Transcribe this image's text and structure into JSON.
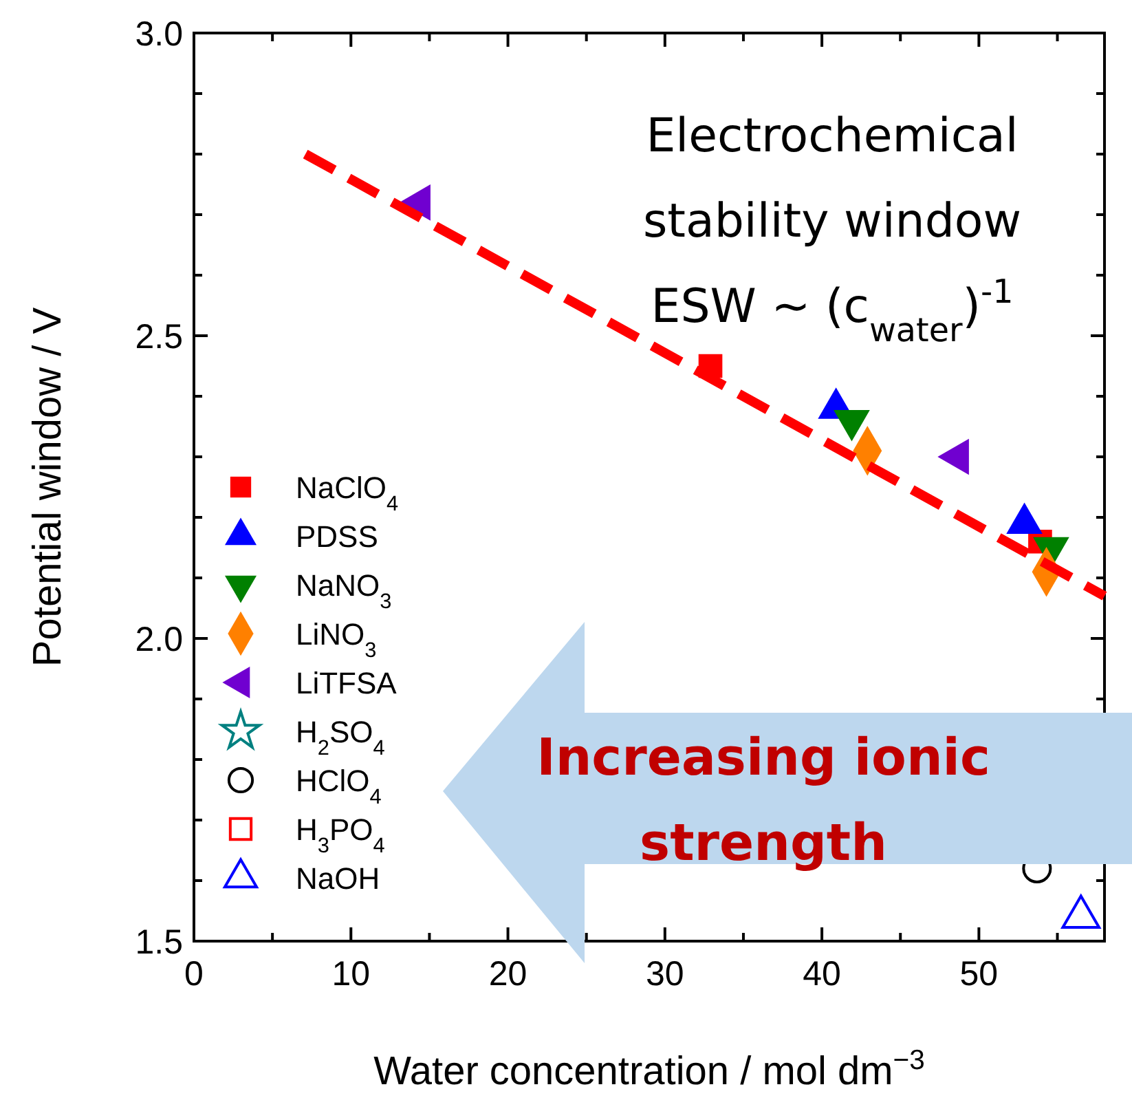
{
  "chart_data": {
    "type": "scatter",
    "xlabel": "Water concentration / mol dm$^{−3}$",
    "ylabel": "Potential window / V",
    "xlim": [
      0,
      58
    ],
    "ylim": [
      1.5,
      3.0
    ],
    "xticks": [
      0,
      10,
      20,
      30,
      40,
      50,
      {
        "value": 5,
        "label": null
      },
      {
        "value": 15,
        "label": null
      },
      {
        "value": 25,
        "label": null
      },
      {
        "value": 35,
        "label": null
      },
      {
        "value": 45,
        "label": null
      },
      {
        "value": 55,
        "label": null
      }
    ],
    "yticks": [
      {
        "value": 1.5,
        "label": "1.5"
      },
      {
        "value": 2.0,
        "label": "2.0"
      },
      {
        "value": 2.5,
        "label": "2.5"
      },
      {
        "value": 3.0,
        "label": "3.0"
      },
      {
        "value": 1.6,
        "label": null
      },
      {
        "value": 1.7,
        "label": null
      },
      {
        "value": 1.8,
        "label": null
      },
      {
        "value": 1.9,
        "label": null
      },
      {
        "value": 2.1,
        "label": null
      },
      {
        "value": 2.2,
        "label": null
      },
      {
        "value": 2.3,
        "label": null
      },
      {
        "value": 2.4,
        "label": null
      },
      {
        "value": 2.6,
        "label": null
      },
      {
        "value": 2.7,
        "label": null
      },
      {
        "value": 2.8,
        "label": null
      },
      {
        "value": 2.9,
        "label": null
      }
    ],
    "legend": "left",
    "series": [
      {
        "name": "NaClO$_{4}$",
        "color": "#ff0000",
        "marker": "square",
        "x": [
          32.9,
          53.9
        ],
        "values": [
          2.45,
          2.16
        ]
      },
      {
        "name": "PDSS",
        "color": "#0000ff",
        "marker": "triangle",
        "x": [
          40.9,
          52.9
        ],
        "values": [
          2.38,
          2.19
        ]
      },
      {
        "name": "NaNO$_{3}$",
        "color": "#008000",
        "marker": "triangle-down",
        "x": [
          41.9,
          54.6
        ],
        "values": [
          2.36,
          2.15
        ]
      },
      {
        "name": "LiNO$_{3}$",
        "color": "#ff8000",
        "marker": "diamond",
        "x": [
          42.9,
          54.3
        ],
        "values": [
          2.31,
          2.11
        ]
      },
      {
        "name": "LiTFSA",
        "color": "#7000d0",
        "marker": "triangle-left",
        "x": [
          14.4,
          48.7
        ],
        "values": [
          2.72,
          2.3
        ]
      },
      {
        "name": "H$_{2}$SO$_{4}$",
        "color": "#008080",
        "marker": "star-open"
      },
      {
        "name": "HClO$_{4}$",
        "color": "#000000",
        "marker": "circle-open",
        "x": [
          53.7
        ],
        "values": [
          1.62
        ]
      },
      {
        "name": "H$_{3}$PO$_{4}$",
        "color": "#ff0000",
        "marker": "square-open"
      },
      {
        "name": "NaOH",
        "color": "#0000ff",
        "marker": "triangle-open",
        "x": [
          56.5
        ],
        "values": [
          1.54
        ]
      },
      {
        "type": "line",
        "color": "#ff0000",
        "line_style": "dashed",
        "x": [
          7.1,
          58
        ],
        "values": [
          2.8,
          2.07
        ]
      }
    ],
    "annotations": [
      "Electrochemical\nstability window\nESW ~ (c$_{water}$)$^{-1}$",
      "Increasing ionic\nstrength"
    ]
  }
}
